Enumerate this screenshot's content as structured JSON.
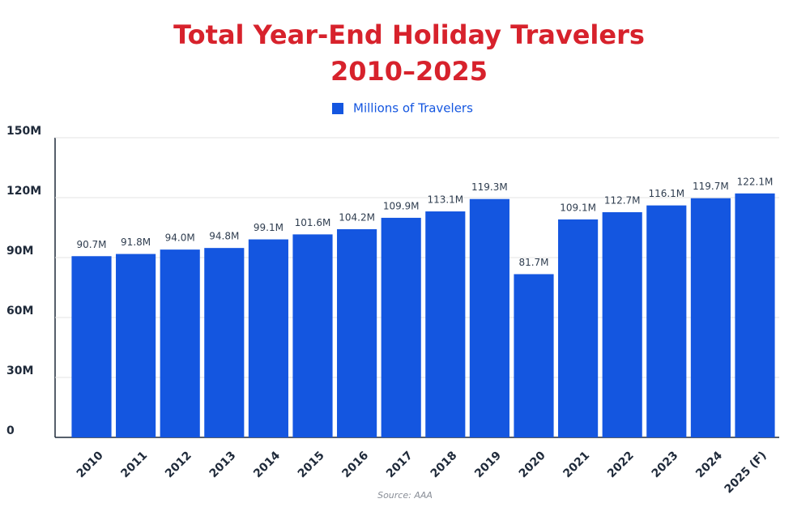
{
  "chart_data": {
    "type": "bar",
    "title": [
      "Total Year-End Holiday Travelers",
      "2010–2025"
    ],
    "source": "Source: AAA",
    "categories": [
      "2010",
      "2011",
      "2012",
      "2013",
      "2014",
      "2015",
      "2016",
      "2017",
      "2018",
      "2019",
      "2020",
      "2021",
      "2022",
      "2023",
      "2024",
      "2025 (F)"
    ],
    "series": [
      {
        "name": "Millions of Travelers",
        "color": "#1456e0",
        "values": [
          90.7,
          91.8,
          94.0,
          94.8,
          99.1,
          101.6,
          104.2,
          109.9,
          113.1,
          119.3,
          81.7,
          109.1,
          112.7,
          116.1,
          119.7,
          122.1
        ],
        "value_labels": [
          "90.7M",
          "91.8M",
          "94.0M",
          "94.8M",
          "99.1M",
          "101.6M",
          "104.2M",
          "109.9M",
          "113.1M",
          "119.3M",
          "81.7M",
          "109.1M",
          "112.7M",
          "116.1M",
          "119.7M",
          "122.1M"
        ]
      }
    ],
    "ylim": [
      0,
      150
    ],
    "yticks": [
      0,
      {
        "value": 30,
        "label": "30M"
      },
      {
        "value": 60,
        "label": "60M"
      },
      {
        "value": 90,
        "label": "90M"
      },
      {
        "value": 120,
        "label": "120M"
      },
      {
        "value": 150,
        "label": "150M"
      }
    ],
    "grid": true
  }
}
